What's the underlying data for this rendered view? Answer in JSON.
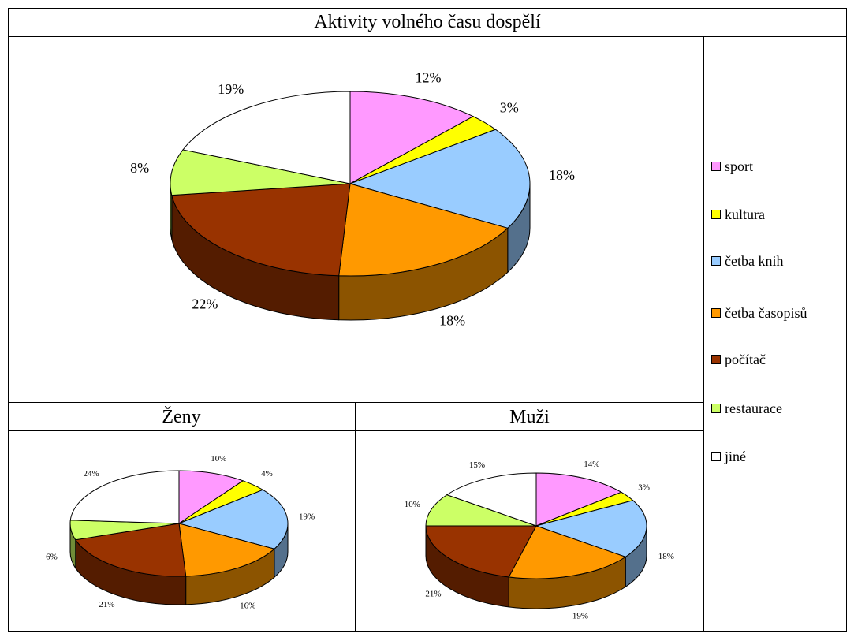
{
  "colors": {
    "sport": "#FF99FF",
    "kultura": "#FFFF00",
    "cetba_knih": "#99CCFF",
    "cetba_casopisu": "#FF9900",
    "pocitac": "#993300",
    "restaurace": "#CCFF66",
    "jine": "#FFFFFF"
  },
  "main_title": "Aktivity volného času dospělí",
  "sub_titles": {
    "zeny": "Ženy",
    "muzi": "Muži"
  },
  "legend": [
    {
      "label": "sport",
      "color": "#FF99FF"
    },
    {
      "label": "kultura",
      "color": "#FFFF00"
    },
    {
      "label": "četba knih",
      "color": "#99CCFF"
    },
    {
      "label": "četba časopisů",
      "color": "#FF9900"
    },
    {
      "label": "počítač",
      "color": "#993300"
    },
    {
      "label": "restaurace",
      "color": "#CCFF66"
    },
    {
      "label": "jiné",
      "color": "#FFFFFF"
    }
  ],
  "chart_data": [
    {
      "type": "pie",
      "title": "Aktivity volného času dospělí",
      "categories": [
        "sport",
        "kultura",
        "četba knih",
        "četba časopisů",
        "počítač",
        "restaurace",
        "jiné"
      ],
      "values": [
        12,
        3,
        18,
        18,
        22,
        8,
        19
      ],
      "labels": [
        "12%",
        "3%",
        "18%",
        "18%",
        "22%",
        "8%",
        "19%"
      ],
      "legend_position": "right"
    },
    {
      "type": "pie",
      "title": "Ženy",
      "categories": [
        "sport",
        "kultura",
        "četba knih",
        "četba časopisů",
        "počítač",
        "restaurace",
        "jiné"
      ],
      "values": [
        10,
        4,
        19,
        16,
        21,
        6,
        24
      ],
      "labels": [
        "10%",
        "4%",
        "19%",
        "16%",
        "21%",
        "6%",
        "24%"
      ]
    },
    {
      "type": "pie",
      "title": "Muži",
      "categories": [
        "sport",
        "kultura",
        "četba knih",
        "četba časopisů",
        "počítač",
        "restaurace",
        "jiné"
      ],
      "values": [
        14,
        3,
        18,
        19,
        21,
        10,
        15
      ],
      "labels": [
        "14%",
        "3%",
        "18%",
        "19%",
        "21%",
        "10%",
        "15%"
      ]
    }
  ]
}
